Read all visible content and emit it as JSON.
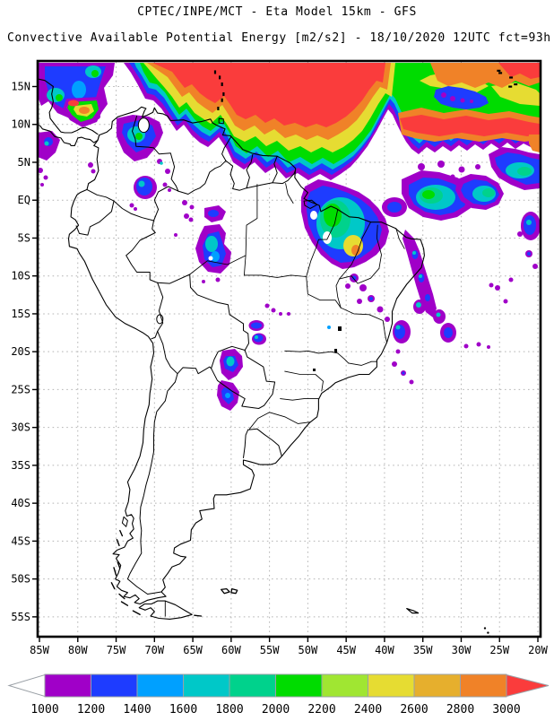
{
  "header": {
    "line1": "CPTEC/INPE/MCT -  Eta Model 15km - GFS",
    "line2": "Convective Available Potential Energy [m2/s2] - 18/10/2020 12UTC fct=93h"
  },
  "map": {
    "lat_labels": [
      "15N",
      "10N",
      "5N",
      "EQ",
      "5S",
      "10S",
      "15S",
      "20S",
      "25S",
      "30S",
      "35S",
      "40S",
      "45S",
      "50S",
      "55S"
    ],
    "lon_labels": [
      "85W",
      "80W",
      "75W",
      "70W",
      "65W",
      "60W",
      "55W",
      "50W",
      "45W",
      "40W",
      "35W",
      "30W",
      "25W",
      "20W"
    ],
    "frame_color": "#000000",
    "grid_color": "#b4b4b4",
    "coast_color": "#000000",
    "background_color": "#ffffff"
  },
  "colorbar": {
    "tick_labels": [
      "1000",
      "1200",
      "1400",
      "1600",
      "1800",
      "2000",
      "2200",
      "2400",
      "2600",
      "2800",
      "3000"
    ],
    "segments": [
      {
        "min": 1000,
        "max": 1200,
        "color": "#A000C8"
      },
      {
        "min": 1200,
        "max": 1400,
        "color": "#1E3CFF"
      },
      {
        "min": 1400,
        "max": 1600,
        "color": "#00A0FF"
      },
      {
        "min": 1600,
        "max": 1800,
        "color": "#00C8C8"
      },
      {
        "min": 1800,
        "max": 2000,
        "color": "#00D28C"
      },
      {
        "min": 2000,
        "max": 2200,
        "color": "#00DC00"
      },
      {
        "min": 2200,
        "max": 2400,
        "color": "#A0E632"
      },
      {
        "min": 2400,
        "max": 2600,
        "color": "#E6DC32"
      },
      {
        "min": 2600,
        "max": 2800,
        "color": "#E6AF2D"
      },
      {
        "min": 2800,
        "max": 3000,
        "color": "#F08228"
      }
    ],
    "below_min_color": "#FFFFFF",
    "above_max_color": "#FA3C3C",
    "outline_color": "#9aa0a6"
  }
}
